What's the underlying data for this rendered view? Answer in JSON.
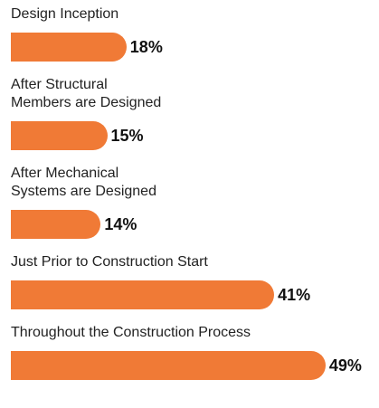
{
  "chart_data": {
    "type": "bar",
    "orientation": "horizontal",
    "color": "#f07a36",
    "categories": [
      "Design Inception",
      "After Structural\nMembers are Designed",
      "After Mechanical\nSystems are Designed",
      "Just Prior to Construction Start",
      "Throughout the Construction Process"
    ],
    "values": [
      18,
      15,
      14,
      41,
      49
    ],
    "value_labels": [
      "18%",
      "15%",
      "14%",
      "41%",
      "49%"
    ]
  }
}
